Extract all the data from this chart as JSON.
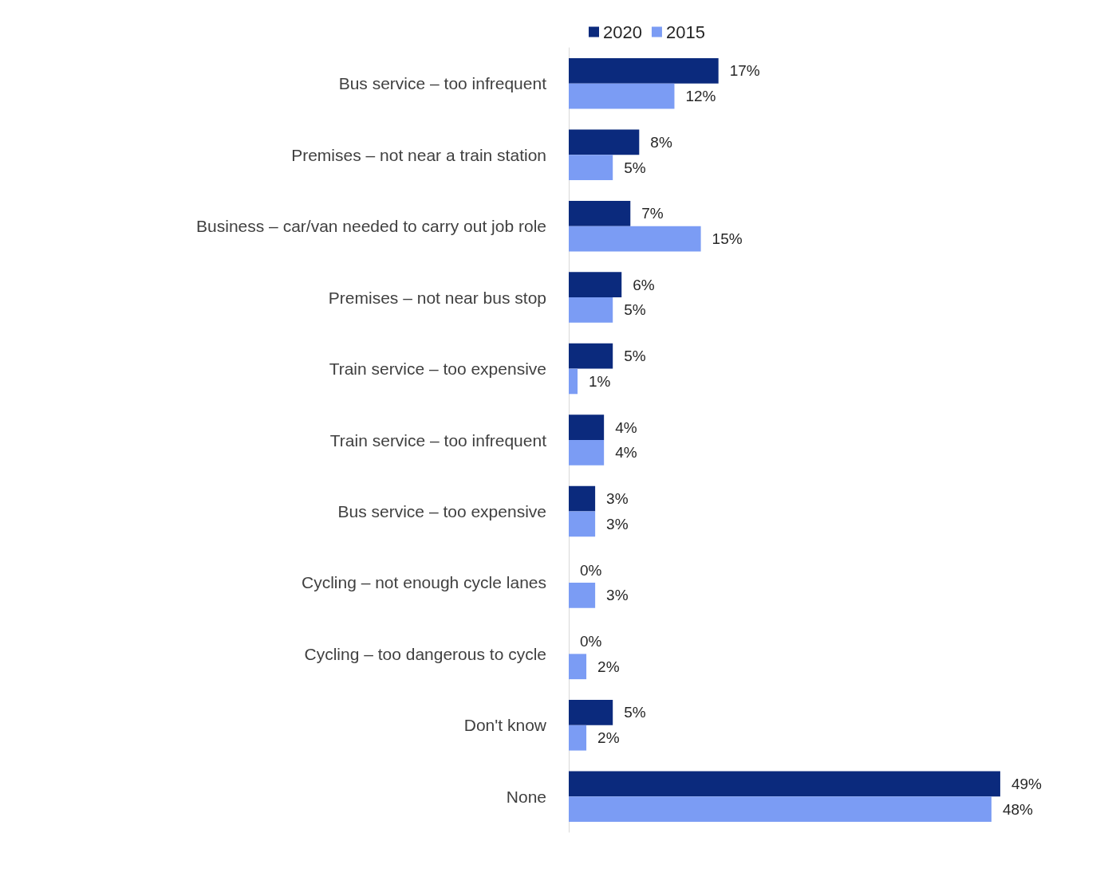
{
  "chart_data": {
    "type": "bar",
    "orientation": "horizontal",
    "categories": [
      "Bus service – too infrequent",
      "Premises – not near a train station",
      "Business – car/van needed to carry out job role",
      "Premises – not near bus stop",
      "Train service – too expensive",
      "Train service – too infrequent",
      "Bus service – too expensive",
      "Cycling – not enough cycle lanes",
      "Cycling – too dangerous to cycle",
      "Don't know",
      "None"
    ],
    "series": [
      {
        "name": "2020",
        "color": "#0b2a7d",
        "values": [
          17,
          8,
          7,
          6,
          5,
          4,
          3,
          0,
          0,
          5,
          49
        ],
        "value_labels": [
          "17%",
          "8%",
          "7%",
          "6%",
          "5%",
          "4%",
          "3%",
          "0%",
          "0%",
          "5%",
          "49%"
        ]
      },
      {
        "name": "2015",
        "color": "#7b9cf4",
        "values": [
          12,
          5,
          15,
          5,
          1,
          4,
          3,
          3,
          2,
          2,
          48
        ],
        "value_labels": [
          "12%",
          "5%",
          "15%",
          "5%",
          "1%",
          "4%",
          "3%",
          "3%",
          "2%",
          "2%",
          "48%"
        ]
      }
    ],
    "tick_labels": "y",
    "grid": false,
    "legend": "top"
  }
}
